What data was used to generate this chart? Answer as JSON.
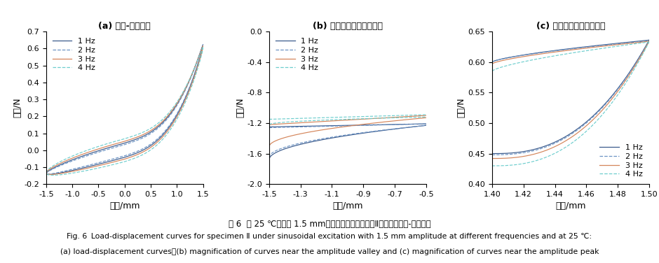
{
  "colors": [
    "#3a5a8c",
    "#6b93c4",
    "#d4855a",
    "#6ecece"
  ],
  "linestyles": [
    "-",
    "--",
    "-",
    "--"
  ],
  "legend_labels": [
    "1 Hz",
    "2 Hz",
    "3 Hz",
    "4 Hz"
  ],
  "panel_a": {
    "xlabel": "位移/mm",
    "ylabel": "载荷/N",
    "title": "(a) 载荷-位移曲线",
    "xlim": [
      -1.5,
      1.5
    ],
    "ylim": [
      -0.2,
      0.7
    ],
    "yticks": [
      -0.2,
      -0.1,
      0.0,
      0.1,
      0.2,
      0.3,
      0.4,
      0.5,
      0.6,
      0.7
    ],
    "xticks": [
      -1.5,
      -1.0,
      -0.5,
      0.0,
      0.5,
      1.0,
      1.5
    ]
  },
  "panel_b": {
    "xlabel": "位移/mm",
    "ylabel": "载荷/N",
    "title": "(b) 振幅谷値附近曲线放大",
    "xlim": [
      -1.5,
      -0.5
    ],
    "ylim": [
      -2.0,
      0.0
    ],
    "yticks": [
      -2.0,
      -1.6,
      -1.2,
      -0.8,
      -0.4,
      0.0
    ],
    "xticks": [
      -1.5,
      -1.3,
      -1.1,
      -0.9,
      -0.7,
      -0.5
    ]
  },
  "panel_c": {
    "xlabel": "位移/mm",
    "ylabel": "载荷/N",
    "title": "(c) 振幅峰値附近曲线放大",
    "xlim": [
      1.4,
      1.5
    ],
    "ylim": [
      0.4,
      0.65
    ],
    "yticks": [
      0.4,
      0.45,
      0.5,
      0.55,
      0.6,
      0.65
    ],
    "xticks": [
      1.4,
      1.42,
      1.44,
      1.46,
      1.48,
      1.5
    ]
  },
  "fig_caption_cn": "图 6  在 25 ℃，振幅 1.5 mm、不同频率激励作用下Ⅱ类试样的载荷-位移曲线",
  "fig_caption_en1": "Fig. 6 Load-displacement curves for specimen Ⅱ under sinusoidal excitation with 1.5 mm amplitude at different frequencies and at 25 ℃:",
  "fig_caption_en2": "(a) load-displacement curves；(b) magnification of curves near the amplitude valley and (c) magnification of curves near the amplitude peak"
}
